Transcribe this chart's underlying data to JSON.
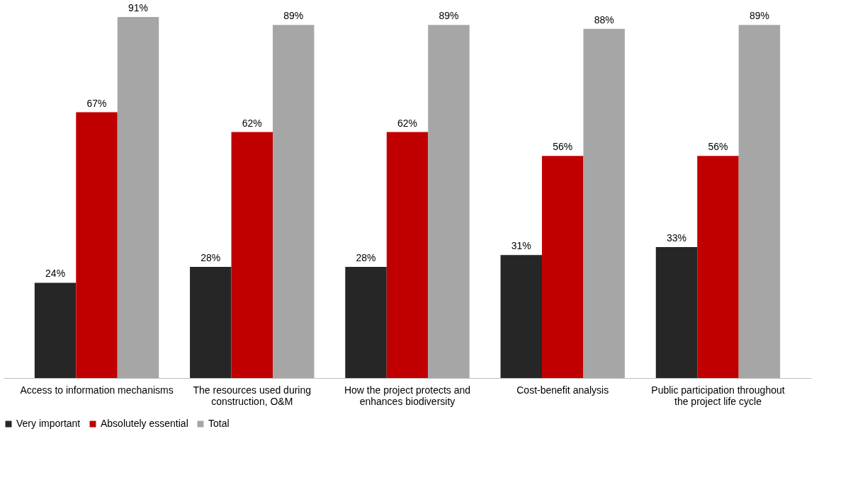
{
  "chart_data": {
    "type": "bar",
    "categories": [
      "Access to information mechanisms",
      "The resources used during construction, O&M",
      "How the project protects and enhances biodiversity",
      "Cost-benefit analysis",
      "Public participation throughout the project life cycle"
    ],
    "series": [
      {
        "name": "Very important",
        "color": "#262626",
        "values": [
          24,
          28,
          28,
          31,
          33
        ],
        "value_labels": [
          "24%",
          "28%",
          "28%",
          "31%",
          "33%"
        ]
      },
      {
        "name": "Absolutely essential",
        "color": "#c00000",
        "values": [
          67,
          62,
          62,
          56,
          56
        ],
        "value_labels": [
          "67%",
          "62%",
          "62%",
          "56%",
          "56%"
        ]
      },
      {
        "name": "Total",
        "color": "#a6a6a6",
        "values": [
          91,
          89,
          89,
          88,
          89
        ],
        "value_labels": [
          "91%",
          "89%",
          "89%",
          "88%",
          "89%"
        ]
      }
    ],
    "legend": "bottom",
    "grid": false
  }
}
